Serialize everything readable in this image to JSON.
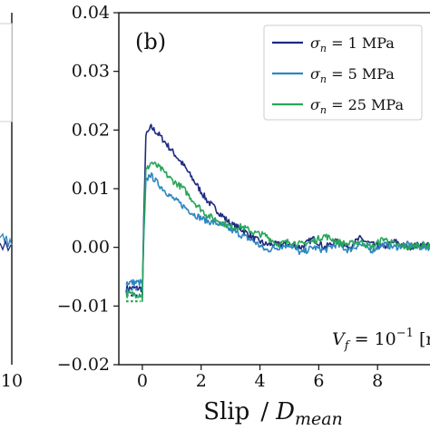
{
  "chart_data": {
    "type": "line",
    "panel_label": "(b)",
    "xlabel_main": "Slip",
    "xlabel_sep": "/",
    "xlabel_var": "D",
    "xlabel_sub": "mean",
    "ylabel": "",
    "xlim": [
      -0.8,
      10
    ],
    "ylim": [
      -0.02,
      0.04
    ],
    "x_ticks": [
      0,
      2,
      4,
      6,
      8
    ],
    "x_tick_labels": [
      "0",
      "2",
      "4",
      "6",
      "8"
    ],
    "y_ticks": [
      -0.02,
      -0.01,
      0.0,
      0.01,
      0.02,
      0.03,
      0.04
    ],
    "y_tick_labels": [
      "−0.02",
      "−0.01",
      "0.00",
      "0.01",
      "0.02",
      "0.03",
      "0.04"
    ],
    "left_panel_tick_label": "10",
    "annotation": {
      "lhs_var": "V",
      "lhs_sub": "f",
      "rhs": " = 10",
      "exp": "−1",
      "unit": " [m/s]"
    },
    "legend_position": "top-right",
    "series": [
      {
        "name": "σn = 1 MPa",
        "legend_sym": "σ",
        "legend_sub": "n",
        "legend_rest": " = 1 MPa",
        "color": "#1f2a80",
        "pre_y": -0.0082,
        "points": [
          [
            0.0,
            -0.0085
          ],
          [
            0.05,
            0.005
          ],
          [
            0.12,
            0.019
          ],
          [
            0.3,
            0.0205
          ],
          [
            0.6,
            0.019
          ],
          [
            1.0,
            0.0165
          ],
          [
            1.4,
            0.014
          ],
          [
            1.8,
            0.011
          ],
          [
            2.2,
            0.008
          ],
          [
            2.6,
            0.006
          ],
          [
            3.0,
            0.004
          ],
          [
            3.4,
            0.003
          ],
          [
            3.8,
            0.0015
          ],
          [
            4.2,
            0.0005
          ],
          [
            4.6,
            0.0005
          ],
          [
            5.0,
            0.0005
          ],
          [
            5.4,
            0.0
          ],
          [
            5.8,
            0.0015
          ],
          [
            6.2,
            0.0
          ],
          [
            6.6,
            0.001
          ],
          [
            7.0,
            0.0
          ],
          [
            7.4,
            0.0015
          ],
          [
            7.8,
            0.0005
          ],
          [
            8.2,
            0.0
          ],
          [
            8.6,
            0.001
          ],
          [
            9.0,
            0.0
          ],
          [
            9.5,
            0.0005
          ],
          [
            10.0,
            0.0
          ]
        ]
      },
      {
        "name": "σn = 5 MPa",
        "legend_sym": "σ",
        "legend_sub": "n",
        "legend_rest": " = 5 MPa",
        "color": "#2e86c1",
        "pre_y": -0.0072,
        "points": [
          [
            0.0,
            -0.0075
          ],
          [
            0.05,
            0.002
          ],
          [
            0.12,
            0.011
          ],
          [
            0.25,
            0.0125
          ],
          [
            0.6,
            0.0105
          ],
          [
            1.0,
            0.0085
          ],
          [
            1.4,
            0.007
          ],
          [
            1.8,
            0.0055
          ],
          [
            2.2,
            0.0045
          ],
          [
            2.6,
            0.004
          ],
          [
            3.0,
            0.003
          ],
          [
            3.4,
            0.002
          ],
          [
            3.8,
            0.001
          ],
          [
            4.2,
            -0.0005
          ],
          [
            4.6,
            0.0
          ],
          [
            5.0,
            0.0005
          ],
          [
            5.4,
            -0.001
          ],
          [
            5.8,
            0.0
          ],
          [
            6.2,
            -0.0005
          ],
          [
            6.6,
            0.0005
          ],
          [
            7.0,
            -0.0005
          ],
          [
            7.4,
            0.0005
          ],
          [
            7.8,
            -0.0005
          ],
          [
            8.2,
            0.0005
          ],
          [
            8.6,
            0.0
          ],
          [
            9.0,
            0.0005
          ],
          [
            9.5,
            0.0
          ],
          [
            10.0,
            0.0
          ]
        ]
      },
      {
        "name": "σn = 25 MPa",
        "legend_sym": "σ",
        "legend_sub": "n",
        "legend_rest": " = 25 MPa",
        "color": "#27a65a",
        "pre_y": -0.0092,
        "points": [
          [
            0.0,
            -0.0092
          ],
          [
            0.05,
            0.003
          ],
          [
            0.12,
            0.013
          ],
          [
            0.3,
            0.0145
          ],
          [
            0.6,
            0.0135
          ],
          [
            1.0,
            0.0115
          ],
          [
            1.4,
            0.01
          ],
          [
            1.8,
            0.0075
          ],
          [
            2.2,
            0.0055
          ],
          [
            2.6,
            0.0045
          ],
          [
            3.0,
            0.0035
          ],
          [
            3.4,
            0.0035
          ],
          [
            3.8,
            0.0025
          ],
          [
            4.2,
            0.002
          ],
          [
            4.6,
            0.0005
          ],
          [
            5.0,
            0.001
          ],
          [
            5.4,
            0.0005
          ],
          [
            5.8,
            0.001
          ],
          [
            6.2,
            0.002
          ],
          [
            6.6,
            0.001
          ],
          [
            7.0,
            0.0005
          ],
          [
            7.4,
            0.001
          ],
          [
            7.8,
            0.0
          ],
          [
            8.2,
            0.0015
          ],
          [
            8.6,
            0.0005
          ],
          [
            9.0,
            0.0
          ],
          [
            9.5,
            0.0005
          ],
          [
            10.0,
            0.0
          ]
        ]
      }
    ]
  }
}
